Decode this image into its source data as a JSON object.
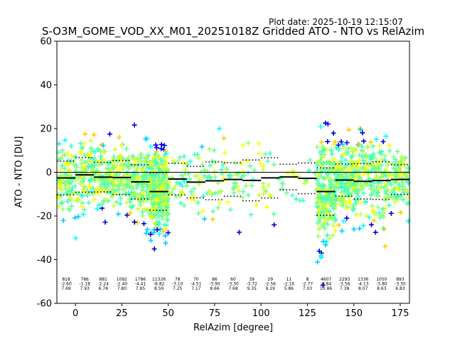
{
  "header": {
    "plot_date": "Plot date: 2025-10-19 12:15:07",
    "title": "S-O3M_GOME_VOD_XX_M01_20251018Z Gridded ATO - NTO vs RelAzim"
  },
  "chart_data": {
    "type": "scatter",
    "title": "S-O3M_GOME_VOD_XX_M01_20251018Z Gridded ATO - NTO vs RelAzim",
    "xlabel": "RelAzim [degree]",
    "ylabel": "ATO - NTO [DU]",
    "xlim": [
      -10,
      180
    ],
    "ylim": [
      -60,
      60
    ],
    "xticks": [
      0,
      25,
      50,
      75,
      100,
      125,
      150,
      175
    ],
    "yticks": [
      -60,
      -40,
      -20,
      0,
      20,
      40,
      60
    ],
    "marker": "plus",
    "point_colors": [
      "#55ffaa",
      "#66ff99",
      "#33ffcc",
      "#99ff66",
      "#ccff33",
      "#ffff00",
      "#ffcc00",
      "#00ccff",
      "#00ffff",
      "#0000ff",
      "#0000cc"
    ],
    "zero_line": 0,
    "bins": [
      {
        "x_start": -10,
        "x_end": 0,
        "count": "818",
        "mean": "-2.60",
        "std": "7.69"
      },
      {
        "x_start": 0,
        "x_end": 10,
        "count": "786",
        "mean": "-1.18",
        "std": "7.93"
      },
      {
        "x_start": 10,
        "x_end": 20,
        "count": "881",
        "mean": "-2.24",
        "std": "6.78"
      },
      {
        "x_start": 20,
        "x_end": 30,
        "count": "1092",
        "mean": "-2.40",
        "std": "7.80"
      },
      {
        "x_start": 30,
        "x_end": 40,
        "count": "1786",
        "mean": "-4.41",
        "std": "7.85"
      },
      {
        "x_start": 40,
        "x_end": 50,
        "count": "11326",
        "mean": "-8.82",
        "std": "8.59"
      },
      {
        "x_start": 50,
        "x_end": 60,
        "count": "78",
        "mean": "-3.10",
        "std": "7.25"
      },
      {
        "x_start": 60,
        "x_end": 70,
        "count": "70",
        "mean": "-4.51",
        "std": "7.17"
      },
      {
        "x_start": 70,
        "x_end": 80,
        "count": "86",
        "mean": "-3.90",
        "std": "8.66"
      },
      {
        "x_start": 80,
        "x_end": 90,
        "count": "60",
        "mean": "-3.30",
        "std": "7.68"
      },
      {
        "x_start": 90,
        "x_end": 100,
        "count": "39",
        "mean": "-3.72",
        "std": "9.35"
      },
      {
        "x_start": 100,
        "x_end": 110,
        "count": "29",
        "mean": "-2.56",
        "std": "9.19"
      },
      {
        "x_start": 110,
        "x_end": 120,
        "count": "11",
        "mean": "-2.16",
        "std": "5.86"
      },
      {
        "x_start": 120,
        "x_end": 130,
        "count": "8",
        "mean": "-2.77",
        "std": "7.03"
      },
      {
        "x_start": 130,
        "x_end": 140,
        "count": "4607",
        "mean": "-8.84",
        "std": "10.86"
      },
      {
        "x_start": 140,
        "x_end": 150,
        "count": "2293",
        "mean": "-3.56",
        "std": "7.38"
      },
      {
        "x_start": 150,
        "x_end": 160,
        "count": "1336",
        "mean": "-4.13",
        "std": "8.07"
      },
      {
        "x_start": 160,
        "x_end": 170,
        "count": "1050",
        "mean": "-3.80",
        "std": "8.63"
      },
      {
        "x_start": 170,
        "x_end": 180,
        "count": "893",
        "mean": "-3.30",
        "std": "6.83"
      }
    ]
  }
}
